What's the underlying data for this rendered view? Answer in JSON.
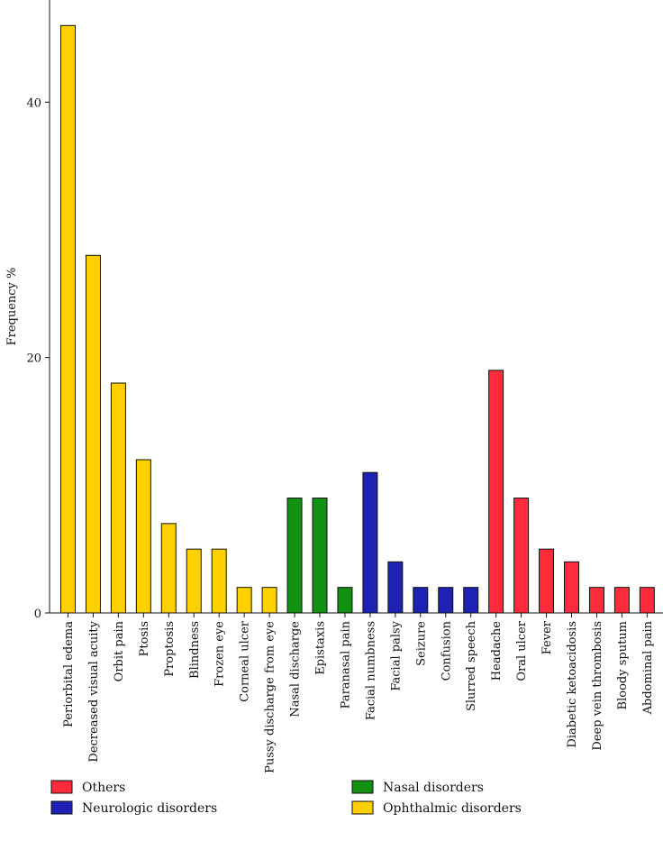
{
  "chart_data": {
    "type": "bar",
    "title": "",
    "xlabel": "",
    "ylabel": "Frequency %",
    "ylim": [
      0,
      48
    ],
    "yticks": [
      0,
      20,
      40
    ],
    "grid": false,
    "legend_position": "bottom",
    "categories": [
      {
        "label": "Periorbital edema",
        "value": 46,
        "group": "ophthalmic"
      },
      {
        "label": "Decreased visual acuity",
        "value": 28,
        "group": "ophthalmic"
      },
      {
        "label": "Orbit pain",
        "value": 18,
        "group": "ophthalmic"
      },
      {
        "label": "Ptosis",
        "value": 12,
        "group": "ophthalmic"
      },
      {
        "label": "Proptosis",
        "value": 7,
        "group": "ophthalmic"
      },
      {
        "label": "Blindness",
        "value": 5,
        "group": "ophthalmic"
      },
      {
        "label": "Frozen eye",
        "value": 5,
        "group": "ophthalmic"
      },
      {
        "label": "Corneal ulcer",
        "value": 2,
        "group": "ophthalmic"
      },
      {
        "label": "Pussy discharge from eye",
        "value": 2,
        "group": "ophthalmic"
      },
      {
        "label": "Nasal discharge",
        "value": 9,
        "group": "nasal"
      },
      {
        "label": "Epistaxis",
        "value": 9,
        "group": "nasal"
      },
      {
        "label": "Paranasal pain",
        "value": 2,
        "group": "nasal"
      },
      {
        "label": "Facial numbness",
        "value": 11,
        "group": "neurologic"
      },
      {
        "label": "Facial palsy",
        "value": 4,
        "group": "neurologic"
      },
      {
        "label": "Seizure",
        "value": 2,
        "group": "neurologic"
      },
      {
        "label": "Confusion",
        "value": 2,
        "group": "neurologic"
      },
      {
        "label": "Slurred speech",
        "value": 2,
        "group": "neurologic"
      },
      {
        "label": "Headache",
        "value": 19,
        "group": "others"
      },
      {
        "label": "Oral ulcer",
        "value": 9,
        "group": "others"
      },
      {
        "label": "Fever",
        "value": 5,
        "group": "others"
      },
      {
        "label": "Diabetic ketoacidosis",
        "value": 4,
        "group": "others"
      },
      {
        "label": "Deep vein thrombosis",
        "value": 2,
        "group": "others"
      },
      {
        "label": "Bloody sputum",
        "value": 2,
        "group": "others"
      },
      {
        "label": "Abdominal pain",
        "value": 2,
        "group": "others"
      }
    ],
    "groups": {
      "others": {
        "name": "Others",
        "color": "#ff2a3c"
      },
      "neurologic": {
        "name": "Neurologic disorders",
        "color": "#1e22b4"
      },
      "nasal": {
        "name": "Nasal disorders",
        "color": "#119011"
      },
      "ophthalmic": {
        "name": "Ophthalmic disorders",
        "color": "#ffd000"
      }
    },
    "legend_order": [
      "others",
      "nasal",
      "neurologic",
      "ophthalmic"
    ]
  }
}
